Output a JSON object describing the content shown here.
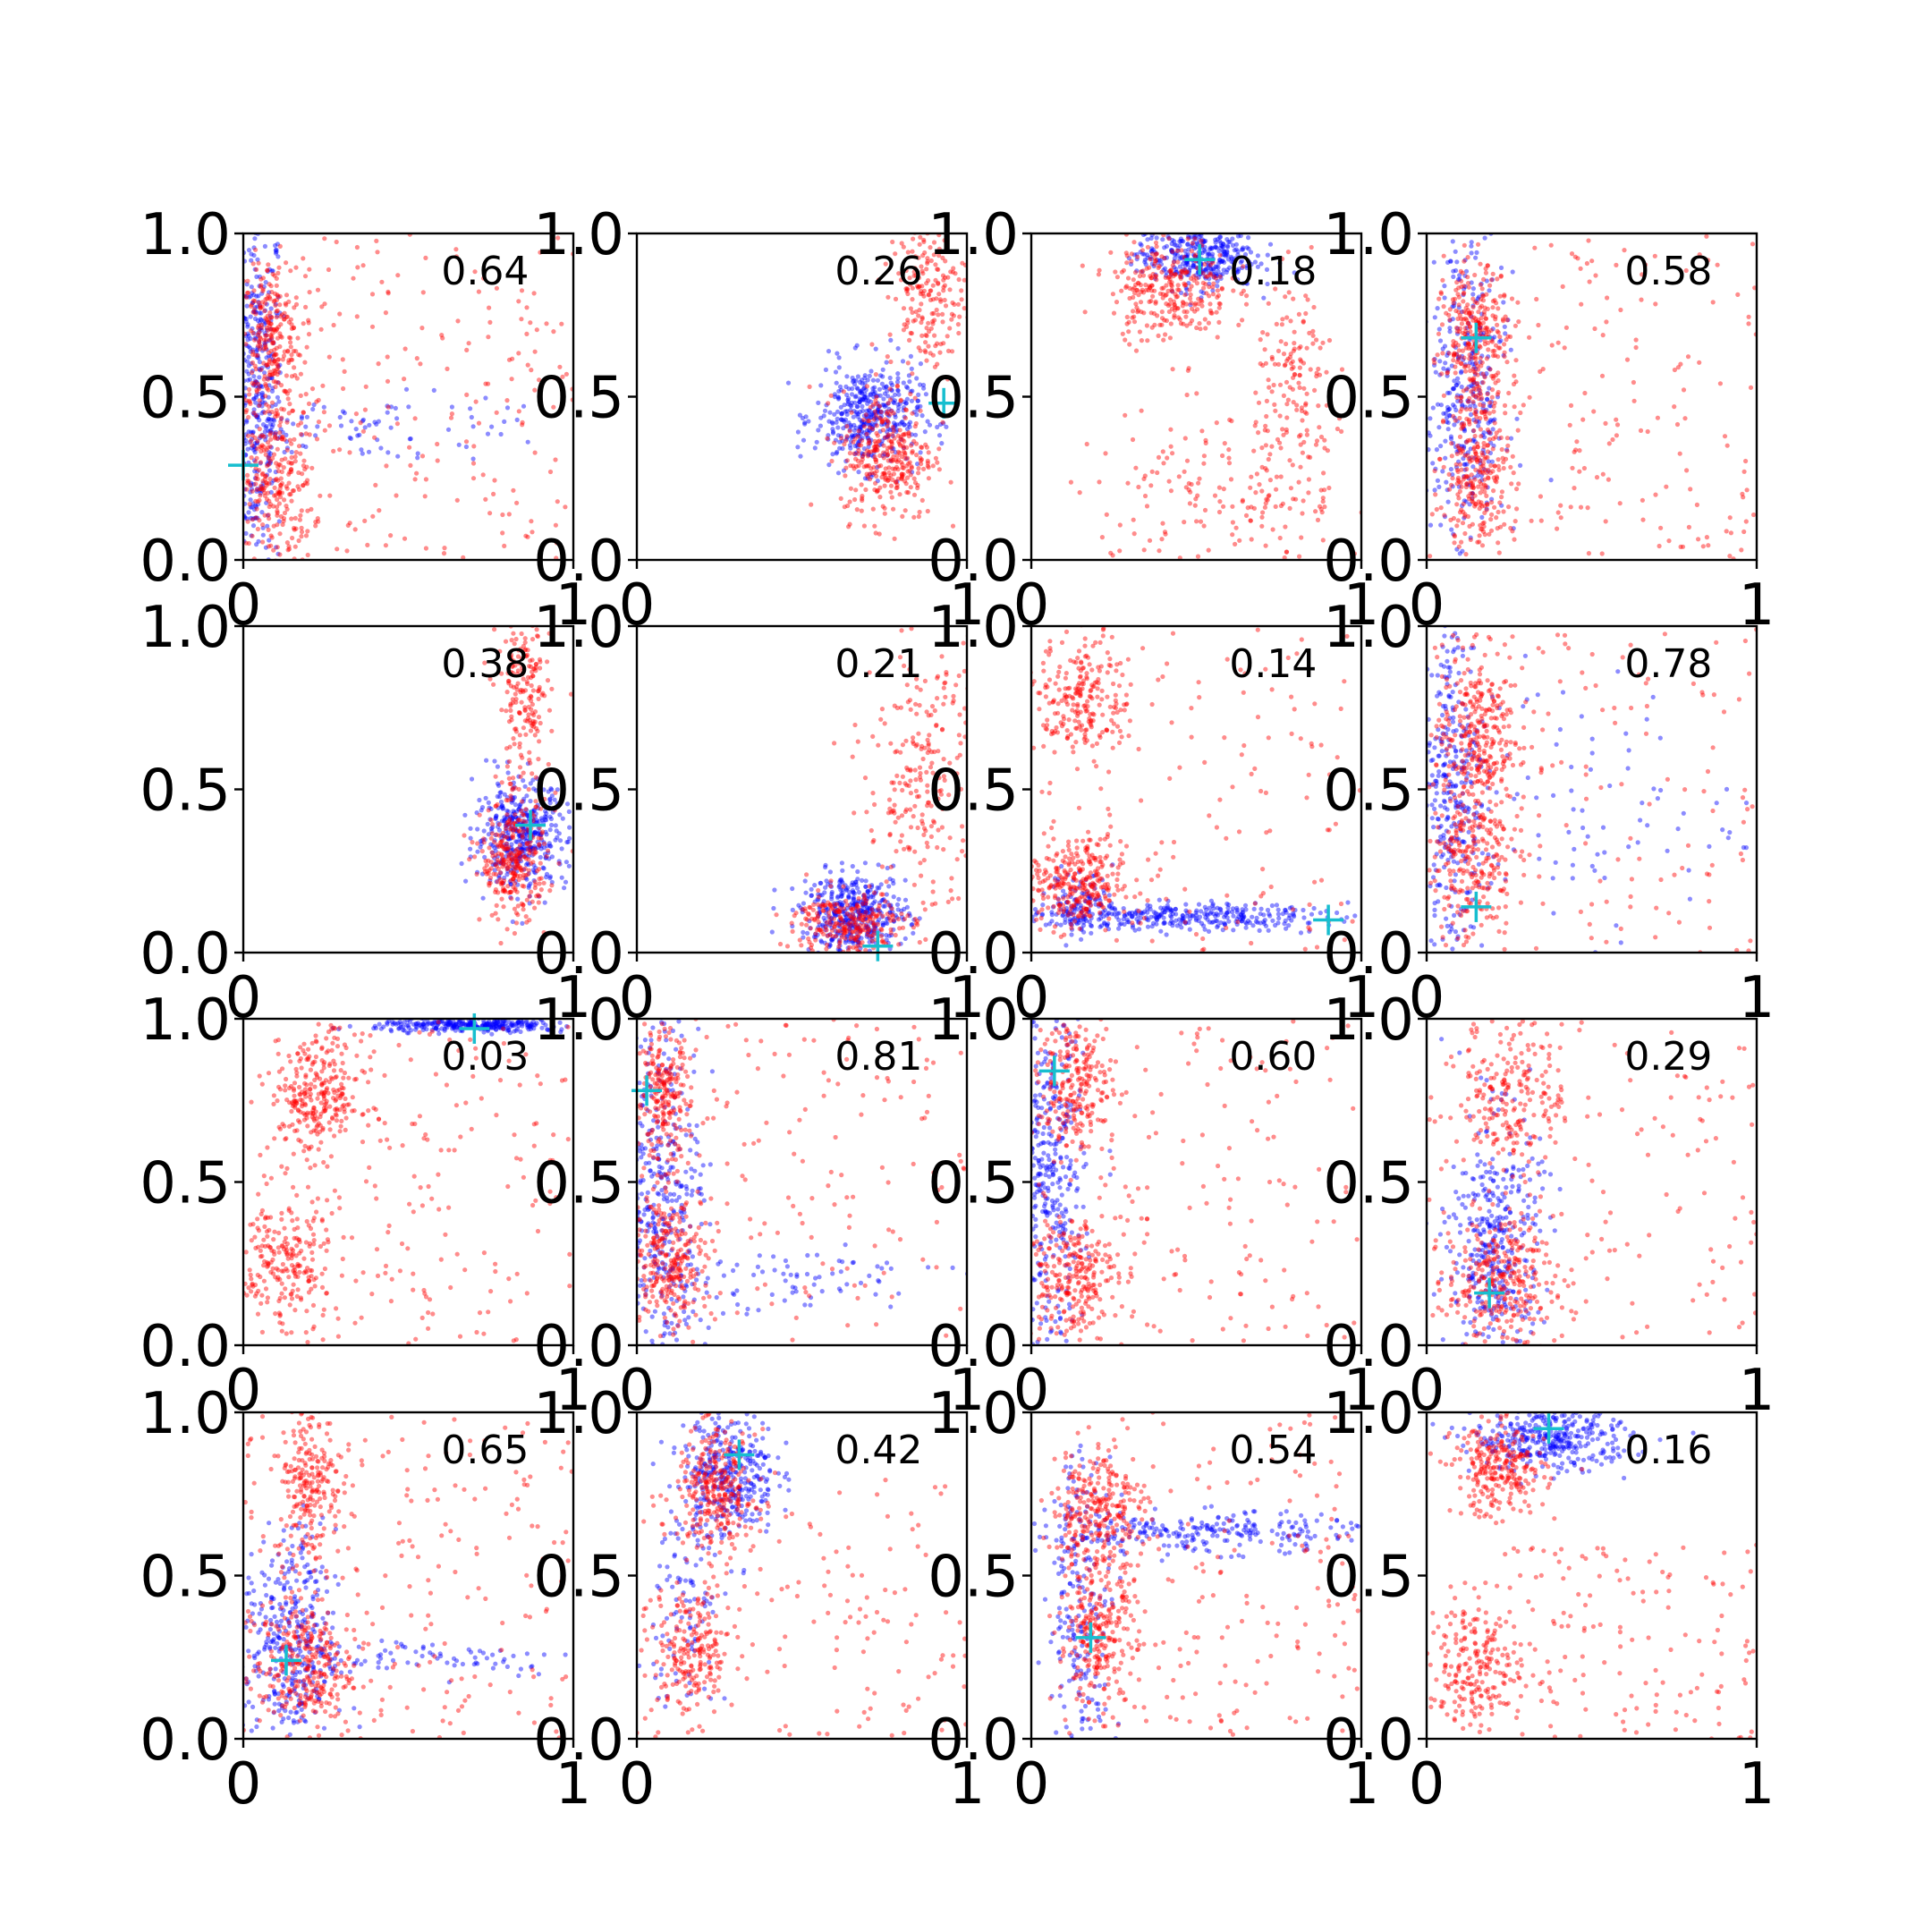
{
  "chart_data": {
    "type": "scatter",
    "layout": "4x4 grid of small scatter panels",
    "xlim": [
      0,
      1
    ],
    "ylim": [
      0,
      1
    ],
    "x_ticks": [
      "0",
      "1"
    ],
    "y_ticks": [
      "0.0",
      "0.5",
      "1.0"
    ],
    "colors": {
      "red": "#ff0000",
      "blue": "#0000ff",
      "marker": "#17becf"
    },
    "panels": [
      {
        "label": "0.64",
        "marker": [
          0.0,
          0.29
        ],
        "red": [
          {
            "cx": 0.08,
            "cy": 0.68,
            "sx": 0.05,
            "sy": 0.12,
            "n": 260
          },
          {
            "cx": 0.09,
            "cy": 0.24,
            "sx": 0.06,
            "sy": 0.13,
            "n": 260
          },
          {
            "cx": 0.5,
            "cy": 0.5,
            "sx": 0.5,
            "sy": 0.5,
            "n": 220,
            "uniform": true
          }
        ],
        "blue": [
          {
            "cx": 0.04,
            "cy": 0.5,
            "sx": 0.04,
            "sy": 0.3,
            "n": 420
          },
          {
            "cx": 0.4,
            "cy": 0.4,
            "sx": 0.3,
            "sy": 0.05,
            "n": 90
          }
        ]
      },
      {
        "label": "0.26",
        "marker": [
          0.93,
          0.48
        ],
        "red": [
          {
            "cx": 0.76,
            "cy": 0.32,
            "sx": 0.07,
            "sy": 0.1,
            "n": 320
          },
          {
            "cx": 0.88,
            "cy": 0.82,
            "sx": 0.06,
            "sy": 0.12,
            "n": 200
          }
        ],
        "blue": [
          {
            "cx": 0.7,
            "cy": 0.44,
            "sx": 0.08,
            "sy": 0.08,
            "n": 420
          }
        ]
      },
      {
        "label": "0.18",
        "marker": [
          0.51,
          0.92
        ],
        "red": [
          {
            "cx": 0.42,
            "cy": 0.83,
            "sx": 0.09,
            "sy": 0.08,
            "n": 300
          },
          {
            "cx": 0.8,
            "cy": 0.55,
            "sx": 0.06,
            "sy": 0.15,
            "n": 140
          },
          {
            "cx": 0.6,
            "cy": 0.2,
            "sx": 0.25,
            "sy": 0.12,
            "n": 200
          }
        ],
        "blue": [
          {
            "cx": 0.5,
            "cy": 0.93,
            "sx": 0.09,
            "sy": 0.05,
            "n": 360
          }
        ]
      },
      {
        "label": "0.58",
        "marker": [
          0.15,
          0.68
        ],
        "red": [
          {
            "cx": 0.15,
            "cy": 0.68,
            "sx": 0.05,
            "sy": 0.1,
            "n": 260
          },
          {
            "cx": 0.16,
            "cy": 0.27,
            "sx": 0.05,
            "sy": 0.13,
            "n": 260
          },
          {
            "cx": 0.5,
            "cy": 0.5,
            "sx": 0.5,
            "sy": 0.5,
            "n": 200,
            "uniform": true
          }
        ],
        "blue": [
          {
            "cx": 0.12,
            "cy": 0.5,
            "sx": 0.06,
            "sy": 0.28,
            "n": 360
          }
        ]
      },
      {
        "label": "0.38",
        "marker": [
          0.87,
          0.39
        ],
        "red": [
          {
            "cx": 0.82,
            "cy": 0.28,
            "sx": 0.05,
            "sy": 0.09,
            "n": 300
          },
          {
            "cx": 0.85,
            "cy": 0.78,
            "sx": 0.04,
            "sy": 0.14,
            "n": 200
          }
        ],
        "blue": [
          {
            "cx": 0.84,
            "cy": 0.36,
            "sx": 0.07,
            "sy": 0.08,
            "n": 420
          }
        ]
      },
      {
        "label": "0.21",
        "marker": [
          0.73,
          0.02
        ],
        "red": [
          {
            "cx": 0.64,
            "cy": 0.09,
            "sx": 0.08,
            "sy": 0.05,
            "n": 260
          },
          {
            "cx": 0.87,
            "cy": 0.55,
            "sx": 0.09,
            "sy": 0.25,
            "n": 260
          }
        ],
        "blue": [
          {
            "cx": 0.66,
            "cy": 0.12,
            "sx": 0.08,
            "sy": 0.06,
            "n": 420
          }
        ]
      },
      {
        "label": "0.14",
        "marker": [
          0.9,
          0.1
        ],
        "red": [
          {
            "cx": 0.16,
            "cy": 0.78,
            "sx": 0.07,
            "sy": 0.09,
            "n": 220
          },
          {
            "cx": 0.13,
            "cy": 0.2,
            "sx": 0.07,
            "sy": 0.07,
            "n": 280
          },
          {
            "cx": 0.5,
            "cy": 0.5,
            "sx": 0.5,
            "sy": 0.5,
            "n": 160,
            "uniform": true
          }
        ],
        "blue": [
          {
            "cx": 0.45,
            "cy": 0.11,
            "sx": 0.25,
            "sy": 0.02,
            "n": 340
          },
          {
            "cx": 0.15,
            "cy": 0.15,
            "sx": 0.05,
            "sy": 0.05,
            "n": 120
          }
        ]
      },
      {
        "label": "0.78",
        "marker": [
          0.15,
          0.14
        ],
        "red": [
          {
            "cx": 0.15,
            "cy": 0.68,
            "sx": 0.06,
            "sy": 0.12,
            "n": 260
          },
          {
            "cx": 0.14,
            "cy": 0.32,
            "sx": 0.06,
            "sy": 0.14,
            "n": 260
          },
          {
            "cx": 0.5,
            "cy": 0.5,
            "sx": 0.5,
            "sy": 0.5,
            "n": 150,
            "uniform": true
          }
        ],
        "blue": [
          {
            "cx": 0.08,
            "cy": 0.5,
            "sx": 0.05,
            "sy": 0.28,
            "n": 320
          },
          {
            "cx": 0.45,
            "cy": 0.45,
            "sx": 0.25,
            "sy": 0.2,
            "n": 90
          }
        ]
      },
      {
        "label": "0.03",
        "marker": [
          0.7,
          0.97
        ],
        "red": [
          {
            "cx": 0.22,
            "cy": 0.76,
            "sx": 0.07,
            "sy": 0.09,
            "n": 280
          },
          {
            "cx": 0.12,
            "cy": 0.24,
            "sx": 0.07,
            "sy": 0.11,
            "n": 240
          },
          {
            "cx": 0.6,
            "cy": 0.5,
            "sx": 0.4,
            "sy": 0.5,
            "n": 160,
            "uniform": true
          }
        ],
        "blue": [
          {
            "cx": 0.7,
            "cy": 0.98,
            "sx": 0.15,
            "sy": 0.01,
            "n": 300
          }
        ]
      },
      {
        "label": "0.81",
        "marker": [
          0.03,
          0.78
        ],
        "red": [
          {
            "cx": 0.08,
            "cy": 0.76,
            "sx": 0.04,
            "sy": 0.1,
            "n": 220
          },
          {
            "cx": 0.1,
            "cy": 0.26,
            "sx": 0.07,
            "sy": 0.1,
            "n": 280
          },
          {
            "cx": 0.5,
            "cy": 0.5,
            "sx": 0.5,
            "sy": 0.5,
            "n": 160,
            "uniform": true
          }
        ],
        "blue": [
          {
            "cx": 0.08,
            "cy": 0.45,
            "sx": 0.06,
            "sy": 0.28,
            "n": 380
          },
          {
            "cx": 0.45,
            "cy": 0.2,
            "sx": 0.25,
            "sy": 0.05,
            "n": 80
          }
        ]
      },
      {
        "label": "0.60",
        "marker": [
          0.07,
          0.84
        ],
        "red": [
          {
            "cx": 0.14,
            "cy": 0.8,
            "sx": 0.06,
            "sy": 0.1,
            "n": 240
          },
          {
            "cx": 0.12,
            "cy": 0.22,
            "sx": 0.07,
            "sy": 0.1,
            "n": 260
          },
          {
            "cx": 0.5,
            "cy": 0.5,
            "sx": 0.5,
            "sy": 0.5,
            "n": 150,
            "uniform": true
          }
        ],
        "blue": [
          {
            "cx": 0.06,
            "cy": 0.5,
            "sx": 0.05,
            "sy": 0.28,
            "n": 360
          }
        ]
      },
      {
        "label": "0.29",
        "marker": [
          0.19,
          0.16
        ],
        "red": [
          {
            "cx": 0.22,
            "cy": 0.2,
            "sx": 0.08,
            "sy": 0.09,
            "n": 280
          },
          {
            "cx": 0.26,
            "cy": 0.78,
            "sx": 0.08,
            "sy": 0.12,
            "n": 220
          },
          {
            "cx": 0.5,
            "cy": 0.5,
            "sx": 0.5,
            "sy": 0.5,
            "n": 150,
            "uniform": true
          }
        ],
        "blue": [
          {
            "cx": 0.21,
            "cy": 0.3,
            "sx": 0.07,
            "sy": 0.2,
            "n": 380
          }
        ]
      },
      {
        "label": "0.65",
        "marker": [
          0.13,
          0.24
        ],
        "red": [
          {
            "cx": 0.2,
            "cy": 0.78,
            "sx": 0.05,
            "sy": 0.12,
            "n": 220
          },
          {
            "cx": 0.19,
            "cy": 0.22,
            "sx": 0.07,
            "sy": 0.1,
            "n": 280
          },
          {
            "cx": 0.5,
            "cy": 0.5,
            "sx": 0.5,
            "sy": 0.5,
            "n": 200,
            "uniform": true
          }
        ],
        "blue": [
          {
            "cx": 0.14,
            "cy": 0.28,
            "sx": 0.07,
            "sy": 0.18,
            "n": 360
          },
          {
            "cx": 0.55,
            "cy": 0.25,
            "sx": 0.25,
            "sy": 0.03,
            "n": 80
          }
        ]
      },
      {
        "label": "0.42",
        "marker": [
          0.31,
          0.87
        ],
        "red": [
          {
            "cx": 0.24,
            "cy": 0.76,
            "sx": 0.06,
            "sy": 0.09,
            "n": 280
          },
          {
            "cx": 0.17,
            "cy": 0.26,
            "sx": 0.06,
            "sy": 0.1,
            "n": 200
          },
          {
            "cx": 0.5,
            "cy": 0.4,
            "sx": 0.5,
            "sy": 0.4,
            "n": 150,
            "uniform": true
          }
        ],
        "blue": [
          {
            "cx": 0.28,
            "cy": 0.82,
            "sx": 0.07,
            "sy": 0.1,
            "n": 340
          },
          {
            "cx": 0.15,
            "cy": 0.4,
            "sx": 0.05,
            "sy": 0.2,
            "n": 100
          }
        ]
      },
      {
        "label": "0.54",
        "marker": [
          0.18,
          0.31
        ],
        "red": [
          {
            "cx": 0.2,
            "cy": 0.7,
            "sx": 0.07,
            "sy": 0.1,
            "n": 280
          },
          {
            "cx": 0.2,
            "cy": 0.3,
            "sx": 0.06,
            "sy": 0.1,
            "n": 240
          },
          {
            "cx": 0.55,
            "cy": 0.5,
            "sx": 0.45,
            "sy": 0.5,
            "n": 180,
            "uniform": true
          }
        ],
        "blue": [
          {
            "cx": 0.5,
            "cy": 0.63,
            "sx": 0.25,
            "sy": 0.03,
            "n": 260
          },
          {
            "cx": 0.15,
            "cy": 0.4,
            "sx": 0.05,
            "sy": 0.25,
            "n": 200
          }
        ]
      },
      {
        "label": "0.16",
        "marker": [
          0.37,
          0.95
        ],
        "red": [
          {
            "cx": 0.22,
            "cy": 0.82,
            "sx": 0.07,
            "sy": 0.07,
            "n": 260
          },
          {
            "cx": 0.15,
            "cy": 0.22,
            "sx": 0.07,
            "sy": 0.1,
            "n": 220
          },
          {
            "cx": 0.6,
            "cy": 0.3,
            "sx": 0.4,
            "sy": 0.3,
            "n": 150,
            "uniform": true
          }
        ],
        "blue": [
          {
            "cx": 0.38,
            "cy": 0.92,
            "sx": 0.12,
            "sy": 0.05,
            "n": 360
          }
        ]
      }
    ]
  }
}
